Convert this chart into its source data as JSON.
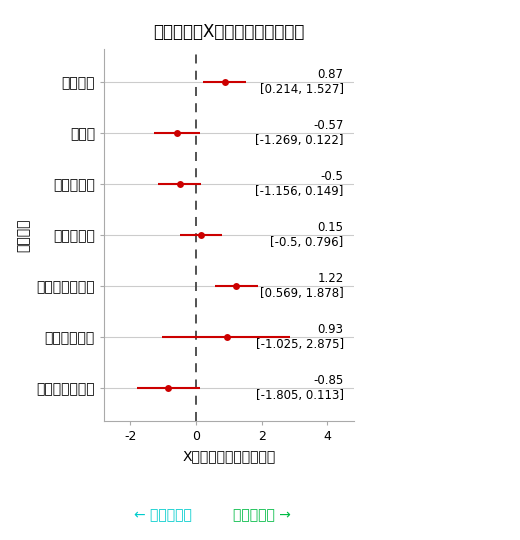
{
  "title": "併存疾患がX線年齢に与える影響",
  "categories": [
    "高血圧症",
    "糖尿病",
    "脂質異常症",
    "高尿酸血症",
    "心房細動・素動",
    "閉塞性肺疾患",
    "植込みデバイス"
  ],
  "estimates": [
    0.87,
    -0.57,
    -0.5,
    0.15,
    1.22,
    0.93,
    -0.85
  ],
  "ci_low": [
    0.214,
    -1.269,
    -1.156,
    -0.5,
    0.569,
    -1.025,
    -1.805
  ],
  "ci_high": [
    1.527,
    0.122,
    0.149,
    0.796,
    1.878,
    2.875,
    0.113
  ],
  "annot_line1": [
    "0.87",
    "-0.57",
    "-0.5",
    "0.15",
    "1.22",
    "0.93",
    "-0.85"
  ],
  "annot_line2": [
    "[0.214, 1.527]",
    "[-1.269, 0.122]",
    "[-1.156, 0.149]",
    "[-0.5, 0.796]",
    "[0.569, 1.878]",
    "[-1.025, 2.875]",
    "[-1.805, 0.113]"
  ],
  "xlabel": "X線年齢への影響（歳）",
  "ylabel": "併存疾患",
  "xlim": [
    -2.8,
    4.8
  ],
  "xticks": [
    -2,
    0,
    2,
    4
  ],
  "point_color": "#cc0000",
  "line_color": "#cc0000",
  "dashed_color": "#444444",
  "grid_color": "#cccccc",
  "left_arrow_text": "若目に推定",
  "right_arrow_text": "高齢に推定",
  "left_arrow_color": "#00cccc",
  "right_arrow_color": "#00bb44",
  "background_color": "#ffffff",
  "title_fontsize": 12,
  "label_fontsize": 10,
  "tick_fontsize": 9,
  "annot_fontsize": 8.5,
  "ylabel_fontsize": 10
}
